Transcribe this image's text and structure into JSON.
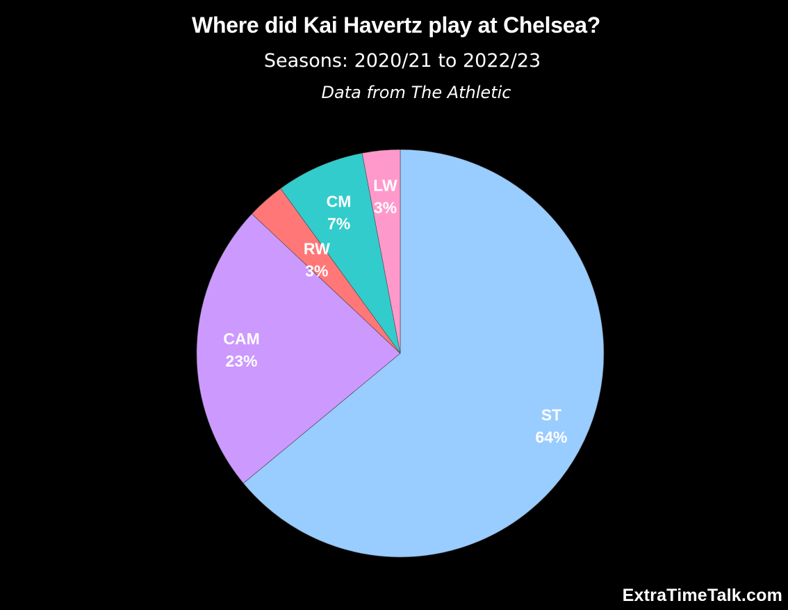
{
  "chart_data": {
    "type": "pie",
    "title": "Where did Kai Havertz play at Chelsea?",
    "subtitle": "Seasons: 2020/21 to 2022/23",
    "source": "Data from The Athletic",
    "slices": [
      {
        "label": "ST",
        "value": 64,
        "pct_label": "64%",
        "color": "#99ccff"
      },
      {
        "label": "CAM",
        "value": 23,
        "pct_label": "23%",
        "color": "#cc99ff"
      },
      {
        "label": "RW",
        "value": 3,
        "pct_label": "3%",
        "color": "#ff7777"
      },
      {
        "label": "CM",
        "value": 7,
        "pct_label": "7%",
        "color": "#33cccc"
      },
      {
        "label": "LW",
        "value": 3,
        "pct_label": "3%",
        "color": "#ff99cc"
      }
    ],
    "start_angle": "top",
    "direction": "clockwise",
    "legend": "none"
  },
  "watermark": "ExtraTimeTalk.com",
  "colors": {
    "background": "#000000",
    "text": "#ffffff"
  }
}
